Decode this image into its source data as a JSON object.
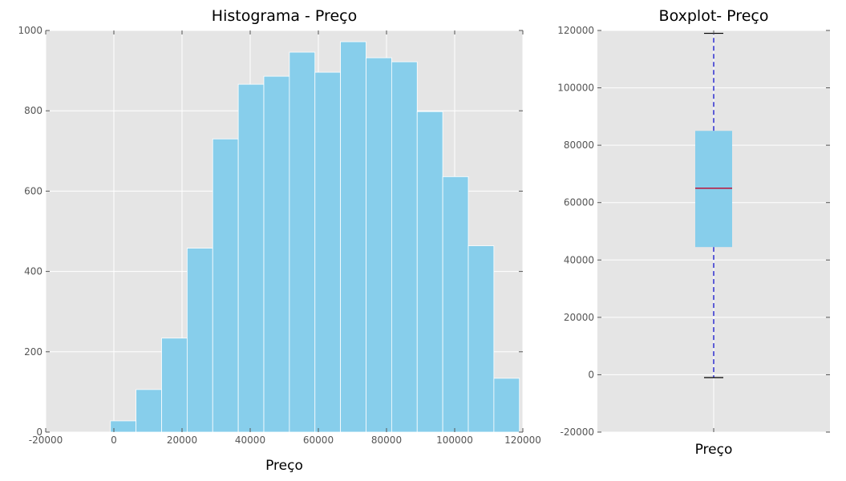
{
  "chart_data": [
    {
      "type": "bar",
      "title": "Histograma - Preço",
      "xlabel": "Preço",
      "ylabel": "",
      "xlim": [
        -20000,
        120000
      ],
      "ylim": [
        0,
        1000
      ],
      "xticks": [
        "-20000",
        "0",
        "20000",
        "40000",
        "60000",
        "80000",
        "100000",
        "120000"
      ],
      "yticks": [
        "0",
        "200",
        "400",
        "600",
        "800",
        "1000"
      ],
      "grid": true,
      "bar_color": "#87ceeb",
      "bins": [
        {
          "x0": -1000,
          "x1": 6500,
          "count": 28
        },
        {
          "x0": 6500,
          "x1": 14000,
          "count": 106
        },
        {
          "x0": 14000,
          "x1": 21500,
          "count": 234
        },
        {
          "x0": 21500,
          "x1": 29000,
          "count": 458
        },
        {
          "x0": 29000,
          "x1": 36500,
          "count": 730
        },
        {
          "x0": 36500,
          "x1": 44000,
          "count": 866
        },
        {
          "x0": 44000,
          "x1": 51500,
          "count": 886
        },
        {
          "x0": 51500,
          "x1": 59000,
          "count": 946
        },
        {
          "x0": 59000,
          "x1": 66500,
          "count": 896
        },
        {
          "x0": 66500,
          "x1": 74000,
          "count": 972
        },
        {
          "x0": 74000,
          "x1": 81500,
          "count": 932
        },
        {
          "x0": 81500,
          "x1": 89000,
          "count": 922
        },
        {
          "x0": 89000,
          "x1": 96500,
          "count": 798
        },
        {
          "x0": 96500,
          "x1": 104000,
          "count": 636
        },
        {
          "x0": 104000,
          "x1": 111500,
          "count": 464
        },
        {
          "x0": 111500,
          "x1": 119000,
          "count": 134
        }
      ]
    },
    {
      "type": "boxplot",
      "title": "Boxplot- Preço",
      "category": "Preço",
      "ylim": [
        -20000,
        120000
      ],
      "yticks": [
        "-20000",
        "0",
        "20000",
        "40000",
        "60000",
        "80000",
        "100000",
        "120000"
      ],
      "grid": true,
      "box_color": "#87ceeb",
      "median_color": "#c0002a",
      "whisker_color": "#0000cc",
      "whisker_low": -1000,
      "q1": 44500,
      "median": 65000,
      "q3": 85000,
      "whisker_high": 119000
    }
  ]
}
